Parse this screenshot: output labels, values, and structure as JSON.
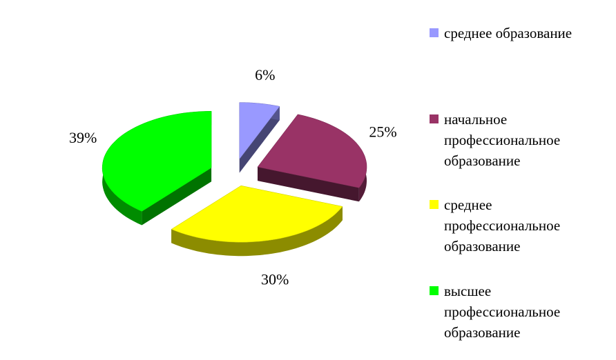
{
  "chart_data": {
    "type": "pie",
    "categories": [
      "среднее образование",
      "начальное профессиональное образование",
      "среднее профессиональное образование",
      "высшее профессиональное образование"
    ],
    "values": [
      6,
      25,
      30,
      39
    ],
    "value_labels": [
      "6%",
      "25%",
      "30%",
      "39%"
    ],
    "colors": [
      "#9999ff",
      "#993366",
      "#ffff00",
      "#00ff00"
    ],
    "legend": "right"
  }
}
